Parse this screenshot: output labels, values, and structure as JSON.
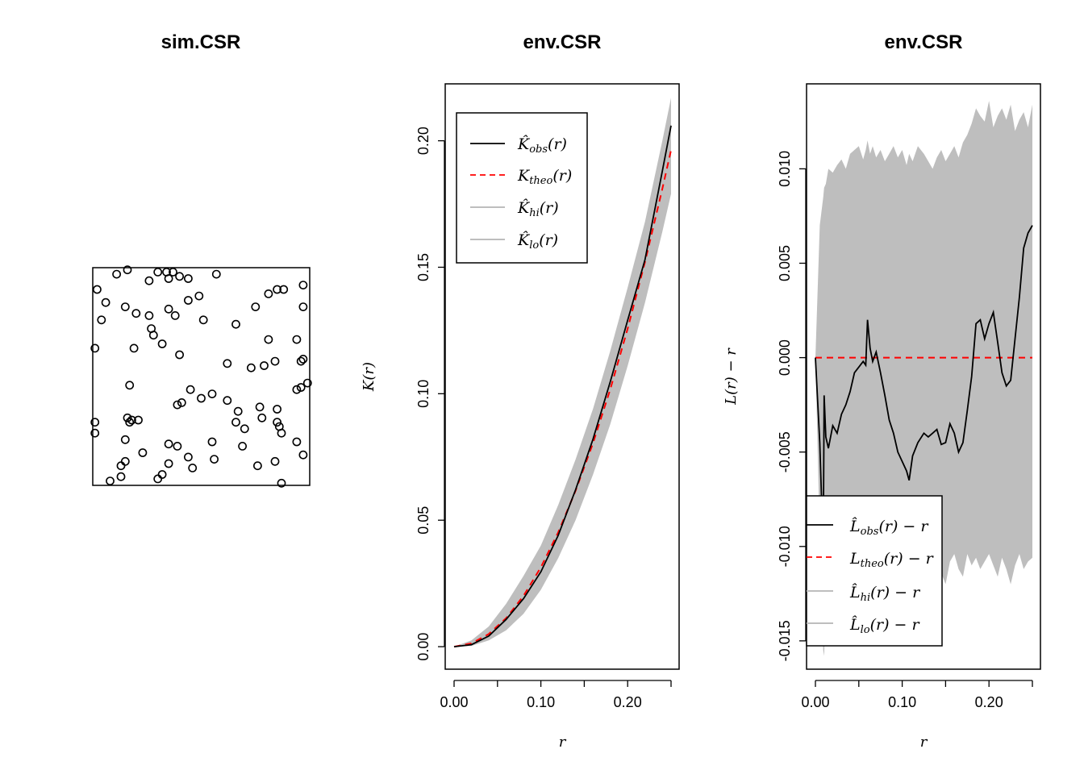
{
  "chart_data": [
    {
      "type": "scatter",
      "title": "sim.CSR",
      "xlim": [
        0,
        1
      ],
      "ylim": [
        0,
        1
      ],
      "marker": "open-circle",
      "points": [
        [
          0.19,
          0.63
        ],
        [
          0.26,
          0.94
        ],
        [
          0.3,
          0.98
        ],
        [
          0.34,
          0.98
        ],
        [
          0.37,
          0.98
        ],
        [
          0.11,
          0.97
        ],
        [
          0.16,
          0.99
        ],
        [
          0.35,
          0.95
        ],
        [
          0.44,
          0.95
        ],
        [
          0.57,
          0.97
        ],
        [
          0.4,
          0.96
        ],
        [
          0.02,
          0.9
        ],
        [
          0.06,
          0.84
        ],
        [
          0.15,
          0.82
        ],
        [
          0.2,
          0.79
        ],
        [
          0.26,
          0.78
        ],
        [
          0.35,
          0.81
        ],
        [
          0.38,
          0.78
        ],
        [
          0.44,
          0.85
        ],
        [
          0.49,
          0.87
        ],
        [
          0.04,
          0.76
        ],
        [
          0.27,
          0.72
        ],
        [
          0.28,
          0.69
        ],
        [
          0.32,
          0.65
        ],
        [
          0.51,
          0.76
        ],
        [
          0.66,
          0.74
        ],
        [
          0.75,
          0.82
        ],
        [
          0.81,
          0.88
        ],
        [
          0.85,
          0.9
        ],
        [
          0.88,
          0.9
        ],
        [
          0.97,
          0.92
        ],
        [
          0.97,
          0.82
        ],
        [
          0.01,
          0.63
        ],
        [
          0.81,
          0.67
        ],
        [
          0.94,
          0.67
        ],
        [
          0.4,
          0.6
        ],
        [
          0.62,
          0.56
        ],
        [
          0.73,
          0.54
        ],
        [
          0.79,
          0.55
        ],
        [
          0.84,
          0.57
        ],
        [
          0.96,
          0.57
        ],
        [
          0.97,
          0.58
        ],
        [
          0.99,
          0.47
        ],
        [
          0.94,
          0.44
        ],
        [
          0.96,
          0.45
        ],
        [
          0.17,
          0.46
        ],
        [
          0.41,
          0.38
        ],
        [
          0.39,
          0.37
        ],
        [
          0.45,
          0.44
        ],
        [
          0.5,
          0.4
        ],
        [
          0.55,
          0.42
        ],
        [
          0.62,
          0.39
        ],
        [
          0.67,
          0.34
        ],
        [
          0.77,
          0.36
        ],
        [
          0.85,
          0.35
        ],
        [
          0.16,
          0.31
        ],
        [
          0.17,
          0.29
        ],
        [
          0.18,
          0.3
        ],
        [
          0.21,
          0.3
        ],
        [
          0.66,
          0.29
        ],
        [
          0.7,
          0.26
        ],
        [
          0.78,
          0.31
        ],
        [
          0.85,
          0.29
        ],
        [
          0.86,
          0.27
        ],
        [
          0.87,
          0.24
        ],
        [
          0.01,
          0.29
        ],
        [
          0.01,
          0.24
        ],
        [
          0.15,
          0.21
        ],
        [
          0.35,
          0.19
        ],
        [
          0.39,
          0.18
        ],
        [
          0.55,
          0.2
        ],
        [
          0.69,
          0.18
        ],
        [
          0.94,
          0.2
        ],
        [
          0.97,
          0.14
        ],
        [
          0.23,
          0.15
        ],
        [
          0.44,
          0.13
        ],
        [
          0.56,
          0.12
        ],
        [
          0.35,
          0.1
        ],
        [
          0.46,
          0.08
        ],
        [
          0.15,
          0.11
        ],
        [
          0.13,
          0.09
        ],
        [
          0.76,
          0.09
        ],
        [
          0.84,
          0.11
        ],
        [
          0.32,
          0.05
        ],
        [
          0.3,
          0.03
        ],
        [
          0.08,
          0.02
        ],
        [
          0.13,
          0.04
        ],
        [
          0.87,
          0.01
        ]
      ]
    },
    {
      "type": "line",
      "title": "env.CSR",
      "xlabel": "r",
      "ylabel": "K(r)",
      "xlim": [
        0,
        0.25
      ],
      "ylim": [
        0,
        0.21
      ],
      "xticks": [
        "0.00",
        "0.10",
        "0.20"
      ],
      "xtick_values": [
        0,
        0.1,
        0.2
      ],
      "xminor_ticks": [
        0.05,
        0.15,
        0.25
      ],
      "yticks": [
        "0.00",
        "0.05",
        "0.10",
        "0.15",
        "0.20"
      ],
      "ytick_values": [
        0,
        0.05,
        0.1,
        0.15,
        0.2
      ],
      "legend_position": "top-left",
      "colors": {
        "obs": "#000000",
        "theo": "#ff0000",
        "envelope": "#bebebe"
      },
      "r": [
        0,
        0.02,
        0.04,
        0.06,
        0.08,
        0.1,
        0.12,
        0.14,
        0.16,
        0.18,
        0.2,
        0.22,
        0.24,
        0.25
      ],
      "series": [
        {
          "key": "obs",
          "values": [
            0,
            0.0008,
            0.0042,
            0.0108,
            0.019,
            0.0296,
            0.044,
            0.062,
            0.082,
            0.1048,
            0.129,
            0.153,
            0.188,
            0.206
          ]
        },
        {
          "key": "theo",
          "values": [
            0,
            0.0013,
            0.005,
            0.0113,
            0.0201,
            0.0314,
            0.0452,
            0.0616,
            0.0804,
            0.1018,
            0.1257,
            0.1521,
            0.181,
            0.1963
          ]
        },
        {
          "key": "hi",
          "values": [
            0,
            0.0025,
            0.008,
            0.017,
            0.028,
            0.04,
            0.056,
            0.074,
            0.094,
            0.117,
            0.142,
            0.168,
            0.2,
            0.217
          ]
        },
        {
          "key": "lo",
          "values": [
            0,
            0.0003,
            0.0025,
            0.0065,
            0.013,
            0.0225,
            0.035,
            0.05,
            0.068,
            0.088,
            0.111,
            0.136,
            0.164,
            0.179
          ]
        }
      ]
    },
    {
      "type": "line",
      "title": "env.CSR",
      "xlabel": "r",
      "ylabel": "L(r) − r",
      "xlim": [
        0,
        0.25
      ],
      "ylim": [
        -0.0165,
        0.0145
      ],
      "xticks": [
        "0.00",
        "0.10",
        "0.20"
      ],
      "xtick_values": [
        0,
        0.1,
        0.2
      ],
      "xminor_ticks": [
        0.05,
        0.15,
        0.25
      ],
      "yticks": [
        "-0.015",
        "-0.010",
        "-0.005",
        "0.000",
        "0.005",
        "0.010"
      ],
      "ytick_values": [
        -0.015,
        -0.01,
        -0.005,
        0,
        0.005,
        0.01
      ],
      "legend_position": "bottom-left",
      "colors": {
        "obs": "#000000",
        "theo": "#ff0000",
        "envelope": "#bebebe"
      },
      "r": [
        0,
        0.005,
        0.009,
        0.01,
        0.012,
        0.015,
        0.02,
        0.025,
        0.03,
        0.035,
        0.04,
        0.045,
        0.05,
        0.055,
        0.058,
        0.06,
        0.063,
        0.066,
        0.07,
        0.075,
        0.08,
        0.085,
        0.09,
        0.095,
        0.1,
        0.105,
        0.108,
        0.112,
        0.118,
        0.125,
        0.13,
        0.135,
        0.14,
        0.145,
        0.15,
        0.155,
        0.16,
        0.165,
        0.17,
        0.175,
        0.18,
        0.185,
        0.19,
        0.195,
        0.2,
        0.205,
        0.21,
        0.215,
        0.22,
        0.225,
        0.23,
        0.235,
        0.24,
        0.245,
        0.25
      ],
      "series": [
        {
          "key": "obs",
          "values": [
            0,
            -0.0045,
            -0.0103,
            -0.002,
            -0.0042,
            -0.0048,
            -0.0036,
            -0.004,
            -0.003,
            -0.0025,
            -0.0018,
            -0.0008,
            -0.0005,
            -0.0002,
            -0.0004,
            0.002,
            0.0005,
            -0.0002,
            0.0003,
            -0.0008,
            -0.002,
            -0.0033,
            -0.004,
            -0.005,
            -0.0055,
            -0.006,
            -0.0065,
            -0.0052,
            -0.0045,
            -0.004,
            -0.0042,
            -0.004,
            -0.0038,
            -0.0046,
            -0.0045,
            -0.0035,
            -0.004,
            -0.005,
            -0.0045,
            -0.0028,
            -0.001,
            0.0018,
            0.002,
            0.001,
            0.0018,
            0.0024,
            0.0008,
            -0.0008,
            -0.0015,
            -0.0012,
            0.001,
            0.0032,
            0.0058,
            0.0066,
            0.007
          ]
        },
        {
          "key": "theo",
          "values": [
            0,
            0,
            0,
            0,
            0,
            0,
            0,
            0,
            0,
            0,
            0,
            0,
            0,
            0,
            0,
            0,
            0,
            0,
            0,
            0,
            0,
            0,
            0,
            0,
            0,
            0,
            0,
            0,
            0,
            0,
            0,
            0,
            0,
            0,
            0,
            0,
            0,
            0,
            0,
            0,
            0,
            0,
            0,
            0,
            0,
            0,
            0,
            0,
            0,
            0,
            0,
            0,
            0,
            0,
            0
          ]
        },
        {
          "key": "hi",
          "values": [
            0,
            0.007,
            0.0085,
            0.009,
            0.0092,
            0.01,
            0.0098,
            0.0102,
            0.0105,
            0.01,
            0.0108,
            0.011,
            0.0112,
            0.0105,
            0.011,
            0.0115,
            0.0108,
            0.0112,
            0.0106,
            0.011,
            0.0104,
            0.0108,
            0.0112,
            0.0106,
            0.011,
            0.0102,
            0.0108,
            0.0104,
            0.0112,
            0.0108,
            0.0104,
            0.01,
            0.0106,
            0.011,
            0.0104,
            0.0108,
            0.0112,
            0.0106,
            0.0114,
            0.0118,
            0.0124,
            0.0132,
            0.0128,
            0.0125,
            0.0136,
            0.0122,
            0.0128,
            0.0132,
            0.0126,
            0.0134,
            0.012,
            0.0126,
            0.013,
            0.0122,
            0.0134
          ]
        },
        {
          "key": "lo",
          "values": [
            0,
            -0.0095,
            -0.0155,
            -0.0158,
            -0.013,
            -0.011,
            -0.01,
            -0.0108,
            -0.0102,
            -0.011,
            -0.0105,
            -0.0098,
            -0.0106,
            -0.01,
            -0.0104,
            -0.0108,
            -0.0102,
            -0.0096,
            -0.0104,
            -0.011,
            -0.01,
            -0.0106,
            -0.0112,
            -0.0104,
            -0.0098,
            -0.0106,
            -0.011,
            -0.0102,
            -0.0108,
            -0.0112,
            -0.0118,
            -0.011,
            -0.0106,
            -0.0114,
            -0.012,
            -0.0108,
            -0.0104,
            -0.0112,
            -0.0116,
            -0.0104,
            -0.011,
            -0.0106,
            -0.0112,
            -0.0108,
            -0.0104,
            -0.011,
            -0.0116,
            -0.0106,
            -0.0112,
            -0.012,
            -0.011,
            -0.0104,
            -0.0112,
            -0.0108,
            -0.0106
          ]
        }
      ]
    }
  ]
}
